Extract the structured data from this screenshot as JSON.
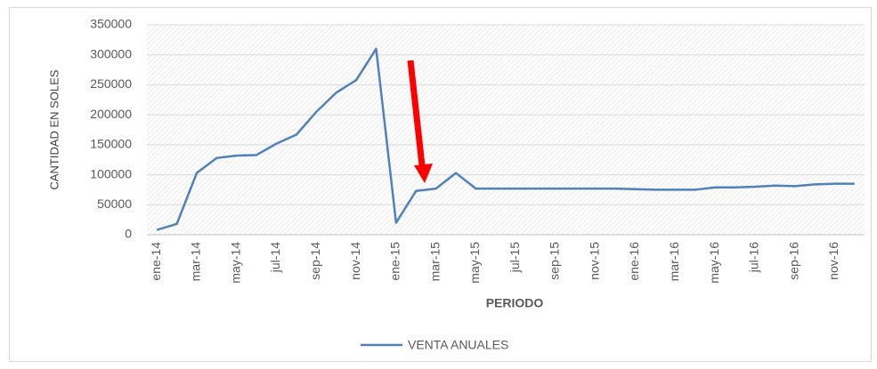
{
  "chart_data": {
    "type": "line",
    "x_label": "PERIODO",
    "y_label": "CANTIDAD EN SOLES",
    "categories": [
      "ene-14",
      null,
      "mar-14",
      null,
      "may-14",
      null,
      "jul-14",
      null,
      "sep-14",
      null,
      "nov-14",
      null,
      "ene-15",
      null,
      "mar-15",
      null,
      "may-15",
      null,
      "jul-15",
      null,
      "sep-15",
      null,
      "nov-15",
      null,
      "ene-16",
      null,
      "mar-16",
      null,
      "may-16",
      null,
      "jul-16",
      null,
      "sep-16",
      null,
      "nov-16",
      null
    ],
    "series": [
      {
        "name": "VENTA ANUALES",
        "color": "#4f81bd",
        "values": [
          8000,
          18000,
          103000,
          128000,
          132000,
          133000,
          152000,
          167000,
          205000,
          237000,
          258000,
          310000,
          20000,
          73000,
          77000,
          103000,
          77000,
          77000,
          77000,
          77000,
          77000,
          77000,
          77000,
          77000,
          76000,
          75000,
          75000,
          75000,
          79000,
          79000,
          80000,
          82000,
          81000,
          84000,
          85000,
          85000
        ]
      }
    ],
    "ylim": [
      0,
      350000
    ],
    "yticks": [
      0,
      50000,
      100000,
      150000,
      200000,
      250000,
      300000,
      350000
    ],
    "grid": true,
    "legend": "bottom"
  }
}
